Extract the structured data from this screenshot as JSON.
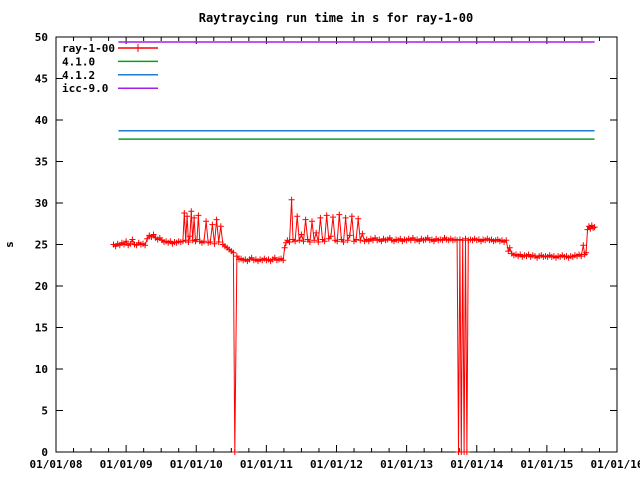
{
  "page": {
    "background": "#ffffff",
    "axis_color": "#000000"
  },
  "chart_data": {
    "type": "line",
    "title": "Raytraycing run time in s for ray-1-00",
    "xlabel": "",
    "ylabel": "s",
    "xlim_years": [
      2008,
      2016
    ],
    "ylim": [
      0,
      50
    ],
    "y_ticks": [
      0,
      5,
      10,
      15,
      20,
      25,
      30,
      35,
      40,
      45,
      50
    ],
    "x_tick_labels": [
      "01/01/08",
      "01/01/09",
      "01/01/10",
      "01/01/11",
      "01/01/12",
      "01/01/13",
      "01/01/14",
      "01/01/15",
      "01/01/16"
    ],
    "x_minor_divisions_per_year": 4,
    "grid": false,
    "legend_position": "top-left",
    "series": [
      {
        "name": "ray-1-00",
        "color": "#ff0000",
        "style": "linespoints",
        "marker": "plus",
        "points": [
          [
            2008.82,
            25.0
          ],
          [
            2008.85,
            24.8
          ],
          [
            2008.88,
            25.1
          ],
          [
            2008.91,
            24.9
          ],
          [
            2008.94,
            25.2
          ],
          [
            2008.97,
            25.0
          ],
          [
            2009.0,
            25.4
          ],
          [
            2009.03,
            24.9
          ],
          [
            2009.06,
            25.1
          ],
          [
            2009.09,
            25.6
          ],
          [
            2009.12,
            25.0
          ],
          [
            2009.15,
            24.9
          ],
          [
            2009.18,
            25.2
          ],
          [
            2009.21,
            25.0
          ],
          [
            2009.24,
            25.1
          ],
          [
            2009.27,
            24.9
          ],
          [
            2009.3,
            25.7
          ],
          [
            2009.33,
            26.1
          ],
          [
            2009.36,
            25.9
          ],
          [
            2009.39,
            26.2
          ],
          [
            2009.42,
            25.8
          ],
          [
            2009.45,
            25.6
          ],
          [
            2009.48,
            25.8
          ],
          [
            2009.51,
            25.5
          ],
          [
            2009.54,
            25.3
          ],
          [
            2009.57,
            25.4
          ],
          [
            2009.6,
            25.2
          ],
          [
            2009.63,
            25.4
          ],
          [
            2009.66,
            25.1
          ],
          [
            2009.69,
            25.3
          ],
          [
            2009.72,
            25.2
          ],
          [
            2009.75,
            25.4
          ],
          [
            2009.78,
            25.3
          ],
          [
            2009.81,
            25.4
          ],
          [
            2009.83,
            28.8
          ],
          [
            2009.85,
            25.5
          ],
          [
            2009.87,
            28.4
          ],
          [
            2009.89,
            25.3
          ],
          [
            2009.91,
            26.0
          ],
          [
            2009.93,
            29.0
          ],
          [
            2009.95,
            25.5
          ],
          [
            2009.97,
            28.2
          ],
          [
            2009.99,
            25.4
          ],
          [
            2010.01,
            25.6
          ],
          [
            2010.03,
            28.5
          ],
          [
            2010.05,
            25.4
          ],
          [
            2010.08,
            25.2
          ],
          [
            2010.11,
            25.4
          ],
          [
            2010.14,
            27.8
          ],
          [
            2010.17,
            25.2
          ],
          [
            2010.2,
            25.3
          ],
          [
            2010.23,
            27.4
          ],
          [
            2010.26,
            25.1
          ],
          [
            2010.29,
            28.0
          ],
          [
            2010.32,
            25.3
          ],
          [
            2010.35,
            27.2
          ],
          [
            2010.38,
            25.0
          ],
          [
            2010.41,
            24.8
          ],
          [
            2010.44,
            24.6
          ],
          [
            2010.47,
            24.4
          ],
          [
            2010.5,
            24.2
          ],
          [
            2010.53,
            24.0
          ],
          [
            2010.55,
            0.0
          ],
          [
            2010.58,
            23.6
          ],
          [
            2010.61,
            23.2
          ],
          [
            2010.64,
            23.3
          ],
          [
            2010.67,
            23.1
          ],
          [
            2010.7,
            23.2
          ],
          [
            2010.73,
            23.0
          ],
          [
            2010.76,
            23.2
          ],
          [
            2010.79,
            23.4
          ],
          [
            2010.82,
            23.1
          ],
          [
            2010.85,
            23.2
          ],
          [
            2010.88,
            23.0
          ],
          [
            2010.91,
            23.2
          ],
          [
            2010.94,
            23.1
          ],
          [
            2010.97,
            23.3
          ],
          [
            2011.0,
            23.1
          ],
          [
            2011.03,
            23.2
          ],
          [
            2011.06,
            23.0
          ],
          [
            2011.09,
            23.2
          ],
          [
            2011.12,
            23.4
          ],
          [
            2011.15,
            23.1
          ],
          [
            2011.18,
            23.2
          ],
          [
            2011.21,
            23.3
          ],
          [
            2011.24,
            23.1
          ],
          [
            2011.26,
            24.6
          ],
          [
            2011.28,
            25.2
          ],
          [
            2011.3,
            25.5
          ],
          [
            2011.33,
            25.3
          ],
          [
            2011.36,
            30.4
          ],
          [
            2011.38,
            25.6
          ],
          [
            2011.41,
            25.4
          ],
          [
            2011.44,
            28.4
          ],
          [
            2011.47,
            25.5
          ],
          [
            2011.5,
            26.2
          ],
          [
            2011.53,
            25.4
          ],
          [
            2011.56,
            28.0
          ],
          [
            2011.59,
            25.6
          ],
          [
            2011.62,
            25.3
          ],
          [
            2011.65,
            27.8
          ],
          [
            2011.68,
            25.5
          ],
          [
            2011.71,
            26.4
          ],
          [
            2011.74,
            25.3
          ],
          [
            2011.77,
            28.2
          ],
          [
            2011.8,
            25.6
          ],
          [
            2011.83,
            25.4
          ],
          [
            2011.86,
            28.5
          ],
          [
            2011.89,
            25.7
          ],
          [
            2011.92,
            26.0
          ],
          [
            2011.95,
            28.3
          ],
          [
            2011.98,
            25.5
          ],
          [
            2012.01,
            25.4
          ],
          [
            2012.04,
            28.6
          ],
          [
            2012.07,
            25.6
          ],
          [
            2012.1,
            25.3
          ],
          [
            2012.13,
            28.2
          ],
          [
            2012.16,
            25.5
          ],
          [
            2012.19,
            26.1
          ],
          [
            2012.22,
            28.4
          ],
          [
            2012.25,
            25.4
          ],
          [
            2012.28,
            25.6
          ],
          [
            2012.31,
            28.1
          ],
          [
            2012.34,
            25.5
          ],
          [
            2012.37,
            26.3
          ],
          [
            2012.4,
            25.4
          ],
          [
            2012.43,
            25.6
          ],
          [
            2012.46,
            25.4
          ],
          [
            2012.49,
            25.7
          ],
          [
            2012.52,
            25.5
          ],
          [
            2012.55,
            25.8
          ],
          [
            2012.58,
            25.5
          ],
          [
            2012.61,
            25.6
          ],
          [
            2012.64,
            25.4
          ],
          [
            2012.67,
            25.7
          ],
          [
            2012.7,
            25.5
          ],
          [
            2012.73,
            25.6
          ],
          [
            2012.76,
            25.8
          ],
          [
            2012.79,
            25.5
          ],
          [
            2012.82,
            25.4
          ],
          [
            2012.85,
            25.6
          ],
          [
            2012.88,
            25.5
          ],
          [
            2012.91,
            25.7
          ],
          [
            2012.94,
            25.4
          ],
          [
            2012.97,
            25.6
          ],
          [
            2013.0,
            25.5
          ],
          [
            2013.03,
            25.7
          ],
          [
            2013.06,
            25.5
          ],
          [
            2013.09,
            25.8
          ],
          [
            2013.12,
            25.5
          ],
          [
            2013.15,
            25.6
          ],
          [
            2013.18,
            25.4
          ],
          [
            2013.21,
            25.7
          ],
          [
            2013.24,
            25.5
          ],
          [
            2013.27,
            25.6
          ],
          [
            2013.3,
            25.8
          ],
          [
            2013.33,
            25.5
          ],
          [
            2013.36,
            25.6
          ],
          [
            2013.39,
            25.4
          ],
          [
            2013.42,
            25.7
          ],
          [
            2013.45,
            25.5
          ],
          [
            2013.48,
            25.6
          ],
          [
            2013.51,
            25.5
          ],
          [
            2013.54,
            25.8
          ],
          [
            2013.57,
            25.6
          ],
          [
            2013.6,
            25.5
          ],
          [
            2013.63,
            25.7
          ],
          [
            2013.66,
            25.5
          ],
          [
            2013.69,
            25.6
          ],
          [
            2013.72,
            25.5
          ],
          [
            2013.74,
            0.0
          ],
          [
            2013.76,
            25.6
          ],
          [
            2013.78,
            0.0
          ],
          [
            2013.8,
            25.5
          ],
          [
            2013.82,
            0.0
          ],
          [
            2013.84,
            25.7
          ],
          [
            2013.86,
            0.0
          ],
          [
            2013.88,
            25.5
          ],
          [
            2013.91,
            25.6
          ],
          [
            2013.94,
            25.5
          ],
          [
            2013.97,
            25.7
          ],
          [
            2014.0,
            25.5
          ],
          [
            2014.03,
            25.6
          ],
          [
            2014.06,
            25.4
          ],
          [
            2014.09,
            25.6
          ],
          [
            2014.12,
            25.5
          ],
          [
            2014.15,
            25.7
          ],
          [
            2014.18,
            25.5
          ],
          [
            2014.21,
            25.6
          ],
          [
            2014.24,
            25.4
          ],
          [
            2014.27,
            25.5
          ],
          [
            2014.3,
            25.6
          ],
          [
            2014.33,
            25.4
          ],
          [
            2014.36,
            25.5
          ],
          [
            2014.39,
            25.3
          ],
          [
            2014.42,
            25.5
          ],
          [
            2014.45,
            24.2
          ],
          [
            2014.47,
            24.6
          ],
          [
            2014.5,
            23.9
          ],
          [
            2014.53,
            23.7
          ],
          [
            2014.56,
            23.8
          ],
          [
            2014.59,
            23.6
          ],
          [
            2014.62,
            23.8
          ],
          [
            2014.65,
            23.5
          ],
          [
            2014.68,
            23.7
          ],
          [
            2014.71,
            23.6
          ],
          [
            2014.74,
            23.8
          ],
          [
            2014.77,
            23.5
          ],
          [
            2014.8,
            23.7
          ],
          [
            2014.83,
            23.6
          ],
          [
            2014.86,
            23.4
          ],
          [
            2014.89,
            23.6
          ],
          [
            2014.92,
            23.7
          ],
          [
            2014.95,
            23.5
          ],
          [
            2014.98,
            23.6
          ],
          [
            2015.01,
            23.5
          ],
          [
            2015.04,
            23.7
          ],
          [
            2015.07,
            23.5
          ],
          [
            2015.1,
            23.6
          ],
          [
            2015.13,
            23.4
          ],
          [
            2015.16,
            23.6
          ],
          [
            2015.19,
            23.5
          ],
          [
            2015.22,
            23.7
          ],
          [
            2015.25,
            23.5
          ],
          [
            2015.28,
            23.6
          ],
          [
            2015.31,
            23.4
          ],
          [
            2015.34,
            23.6
          ],
          [
            2015.37,
            23.5
          ],
          [
            2015.4,
            23.7
          ],
          [
            2015.43,
            23.6
          ],
          [
            2015.46,
            23.8
          ],
          [
            2015.49,
            23.6
          ],
          [
            2015.52,
            24.9
          ],
          [
            2015.54,
            23.8
          ],
          [
            2015.56,
            24.0
          ],
          [
            2015.58,
            26.8
          ],
          [
            2015.6,
            27.2
          ],
          [
            2015.62,
            26.9
          ],
          [
            2015.64,
            27.3
          ],
          [
            2015.66,
            27.0
          ],
          [
            2015.68,
            27.1
          ]
        ]
      },
      {
        "name": "4.1.0",
        "color": "#00a51e",
        "style": "line",
        "value": 37.7,
        "x_range": [
          2008.89,
          2015.68
        ]
      },
      {
        "name": "4.1.2",
        "color": "#1e7dd2",
        "style": "line",
        "value": 38.7,
        "x_range": [
          2008.89,
          2015.68
        ]
      },
      {
        "name": "icc-9.0",
        "color": "#a51ee6",
        "style": "line",
        "value": 49.4,
        "x_range": [
          2008.89,
          2015.68
        ]
      }
    ],
    "legend_entries": [
      "ray-1-00",
      "4.1.0",
      "4.1.2",
      "icc-9.0"
    ]
  }
}
